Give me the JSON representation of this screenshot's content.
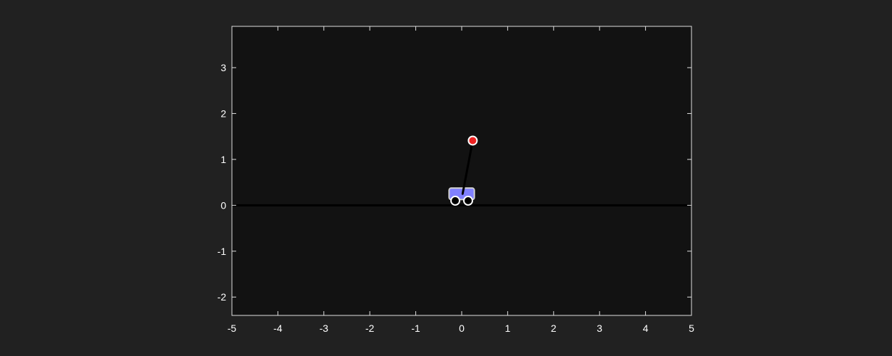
{
  "chart_data": {
    "type": "scatter",
    "title": "",
    "xlabel": "",
    "ylabel": "",
    "xlim": [
      -5,
      5
    ],
    "ylim": [
      -2.4,
      3.9
    ],
    "xticks": [
      -5,
      -4,
      -3,
      -2,
      -1,
      0,
      1,
      2,
      3,
      4,
      5
    ],
    "yticks": [
      -2,
      -1,
      0,
      1,
      2,
      3
    ],
    "xtick_labels": [
      "-5",
      "-4",
      "-3",
      "-2",
      "-1",
      "0",
      "1",
      "2",
      "3",
      "4",
      "5"
    ],
    "ytick_labels": [
      "-2",
      "-1",
      "0",
      "1",
      "2",
      "3"
    ],
    "grid": false,
    "ground_line": {
      "y": 0
    },
    "cart": {
      "x": 0,
      "y": 0.25,
      "width": 0.55,
      "height": 0.25
    },
    "wheels": [
      {
        "x": -0.14,
        "y": 0.1
      },
      {
        "x": 0.14,
        "y": 0.1
      }
    ],
    "pole": {
      "from": {
        "x": 0.02,
        "y": 0.25
      },
      "to": {
        "x": 0.24,
        "y": 1.41
      }
    },
    "bob": {
      "x": 0.24,
      "y": 1.41
    },
    "colors": {
      "figure_bg": "#212121",
      "axes_bg": "#121212",
      "axes_edge": "#e0e0e0",
      "tick_text": "#ffffff",
      "ground": "#000000",
      "cart_fill": "#8080ff",
      "cart_edge": "#d0d0d0",
      "wheel_fill": "#000000",
      "wheel_edge": "#ffffff",
      "pole": "#000000",
      "bob_fill": "#ee2222",
      "bob_edge": "#ffffff"
    }
  }
}
